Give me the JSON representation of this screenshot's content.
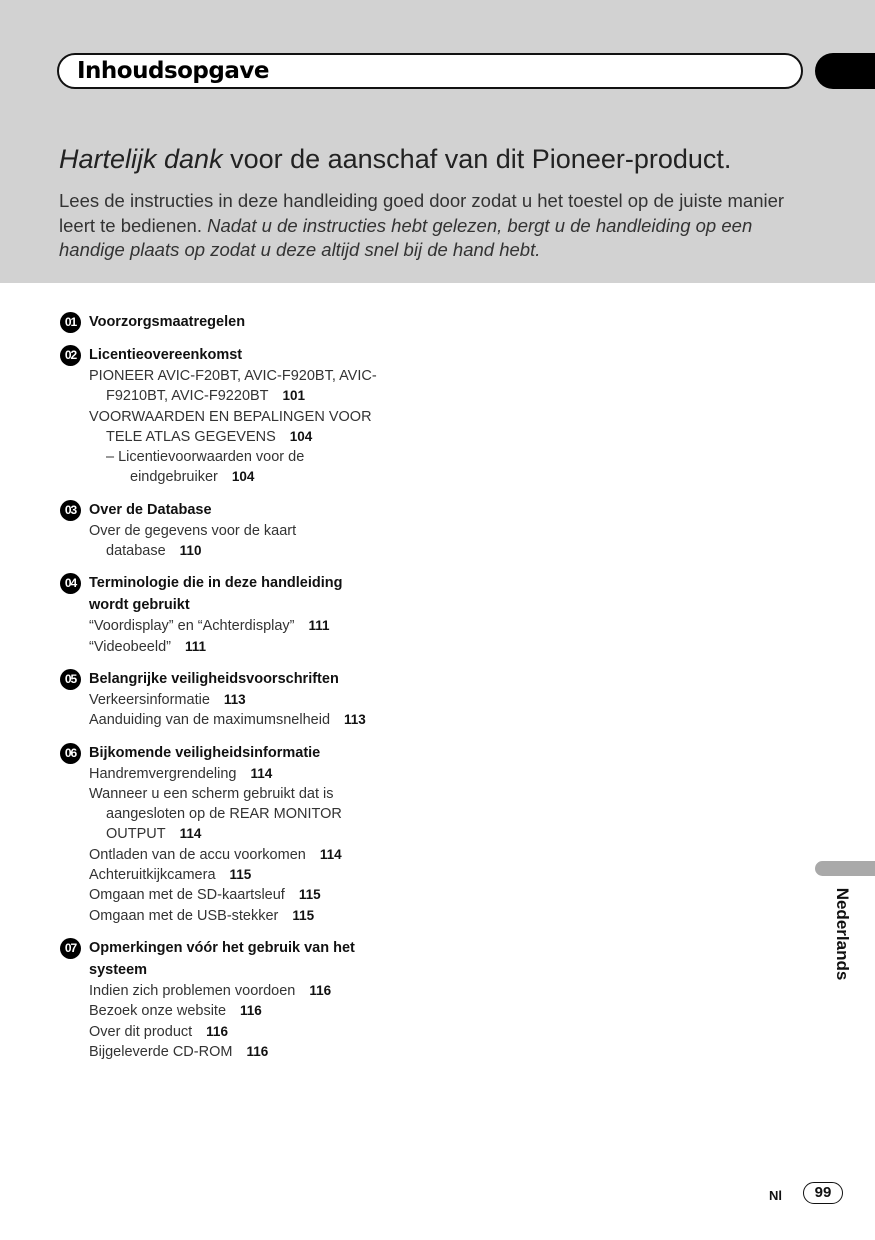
{
  "header": {
    "section_title": "Inhoudsopgave"
  },
  "intro": {
    "thanks_italic": "Hartelijk dank",
    "thanks_rest": " voor de aanschaf van dit Pioneer-product.",
    "para_normal": "Lees de instructies in deze handleiding goed door zodat u het toestel op de juiste manier leert te bedienen. ",
    "para_italic": "Nadat u de instructies hebt gelezen, bergt u de handleiding op een handige plaats op zodat u deze altijd snel bij de hand hebt."
  },
  "toc": [
    {
      "num": "01",
      "title": [
        "Voorzorgsmaatregelen"
      ],
      "lines": []
    },
    {
      "num": "02",
      "title": [
        "Licentieovereenkomst"
      ],
      "lines": [
        {
          "t": "PIONEER AVIC-F20BT, AVIC-F920BT, AVIC-",
          "k": ""
        },
        {
          "t": "F9210BT, AVIC-F9220BT",
          "k": "c",
          "p": "101"
        },
        {
          "t": "VOORWAARDEN EN BEPALINGEN VOOR",
          "k": ""
        },
        {
          "t": "TELE ATLAS GEGEVENS",
          "k": "c",
          "p": "104"
        },
        {
          "t": "–  Licentievoorwaarden voor de",
          "k": "d"
        },
        {
          "t": "eindgebruiker",
          "k": "dc",
          "p": "104"
        }
      ]
    },
    {
      "num": "03",
      "title": [
        "Over de Database"
      ],
      "lines": [
        {
          "t": "Over de gegevens voor de kaart",
          "k": ""
        },
        {
          "t": "database",
          "k": "c",
          "p": "110"
        }
      ]
    },
    {
      "num": "04",
      "title": [
        "Terminologie die in deze handleiding",
        "wordt gebruikt"
      ],
      "lines": [
        {
          "t": "“Voordisplay” en “Achterdisplay”",
          "k": "",
          "p": "111"
        },
        {
          "t": "“Videobeeld”",
          "k": "",
          "p": "111"
        }
      ]
    },
    {
      "num": "05",
      "title": [
        "Belangrijke veiligheidsvoorschriften"
      ],
      "lines": [
        {
          "t": "Verkeersinformatie",
          "k": "",
          "p": "113"
        },
        {
          "t": "Aanduiding van de maximumsnelheid",
          "k": "",
          "p": "113"
        }
      ]
    },
    {
      "num": "06",
      "title": [
        "Bijkomende veiligheidsinformatie"
      ],
      "lines": [
        {
          "t": "Handremvergrendeling",
          "k": "",
          "p": "114"
        },
        {
          "t": "Wanneer u een scherm gebruikt dat is",
          "k": ""
        },
        {
          "t": "aangesloten op de REAR MONITOR",
          "k": "c"
        },
        {
          "t": "OUTPUT",
          "k": "c",
          "p": "114"
        },
        {
          "t": "Ontladen van de accu voorkomen",
          "k": "",
          "p": "114"
        },
        {
          "t": "Achteruitkijkcamera",
          "k": "",
          "p": "115"
        },
        {
          "t": "Omgaan met de SD-kaartsleuf",
          "k": "",
          "p": "115"
        },
        {
          "t": "Omgaan met de USB-stekker",
          "k": "",
          "p": "115"
        }
      ]
    },
    {
      "num": "07",
      "title": [
        "Opmerkingen vóór het gebruik van het",
        "systeem"
      ],
      "lines": [
        {
          "t": "Indien zich problemen voordoen",
          "k": "",
          "p": "116"
        },
        {
          "t": "Bezoek onze website",
          "k": "",
          "p": "116"
        },
        {
          "t": "Over dit product",
          "k": "",
          "p": "116"
        },
        {
          "t": "Bijgeleverde CD-ROM",
          "k": "",
          "p": "116"
        }
      ]
    }
  ],
  "side": {
    "language": "Nederlands"
  },
  "footer": {
    "lang_code": "Nl",
    "page_number": "99"
  }
}
